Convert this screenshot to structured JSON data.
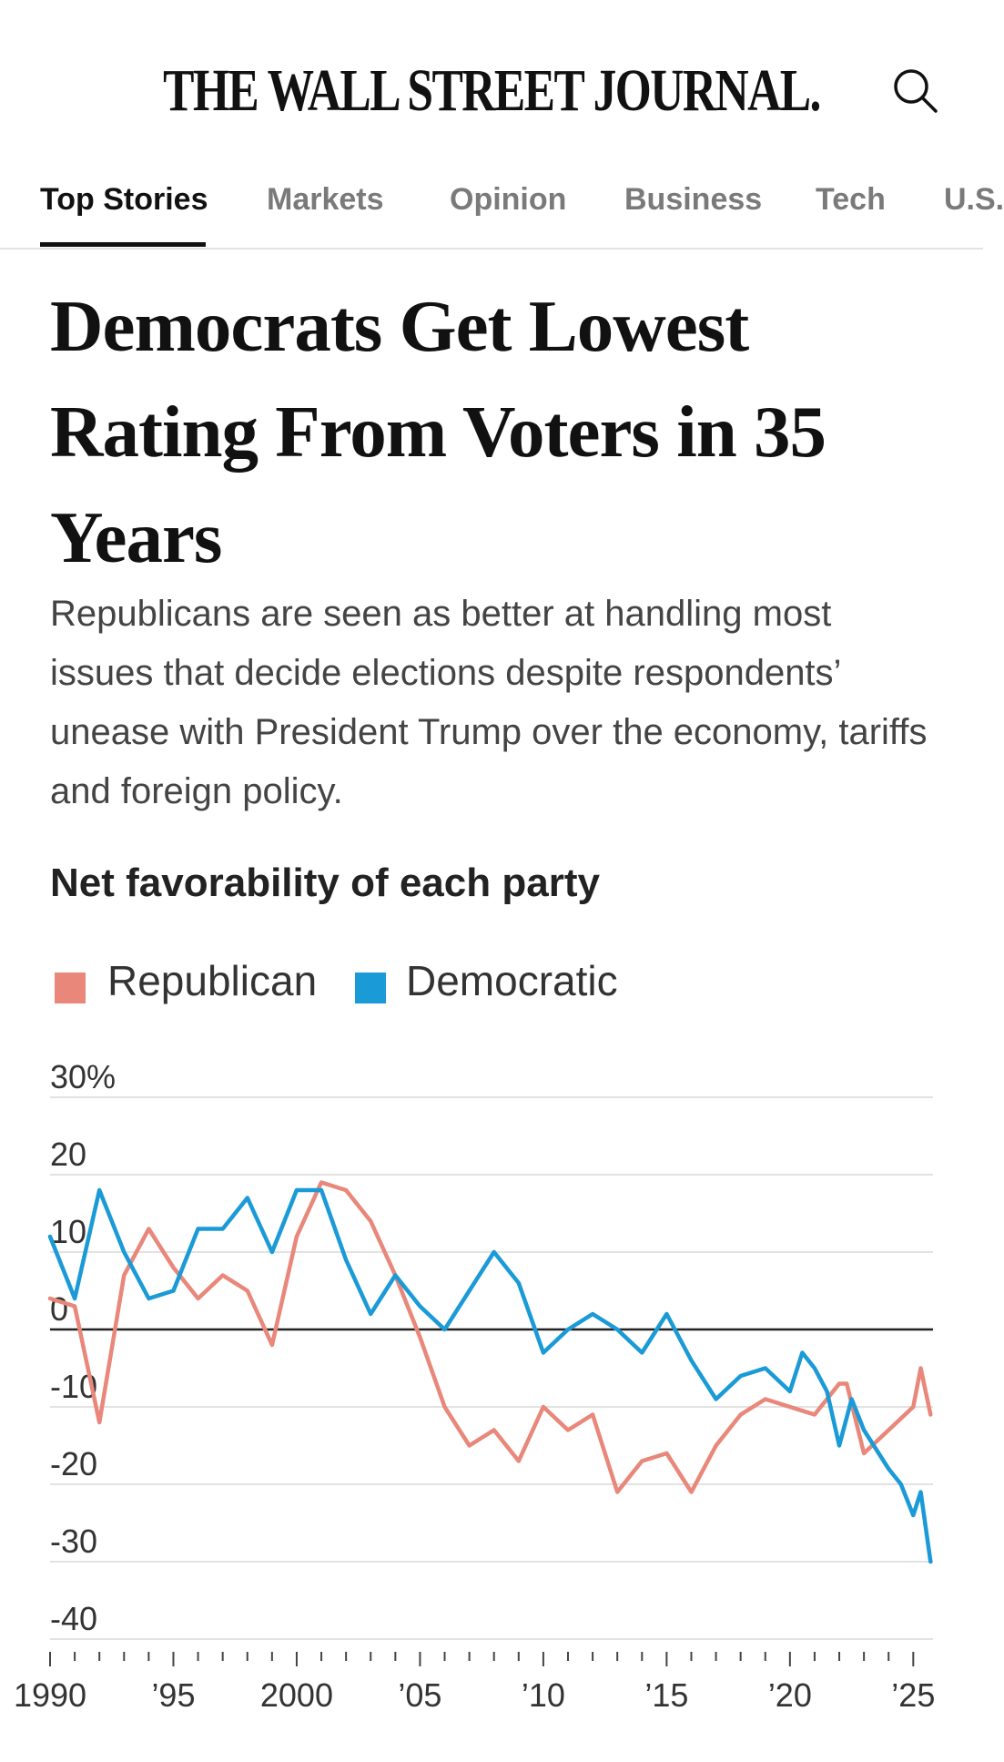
{
  "masthead": {
    "title": "THE WALL STREET JOURNAL."
  },
  "nav": {
    "tabs": [
      {
        "label": "Top Stories",
        "active": true
      },
      {
        "label": "Markets",
        "active": false
      },
      {
        "label": "Opinion",
        "active": false
      },
      {
        "label": "Business",
        "active": false
      },
      {
        "label": "Tech",
        "active": false
      },
      {
        "label": "U.S.",
        "active": false
      }
    ]
  },
  "article": {
    "headline": "Democrats Get Lowest Rating From Voters in 35 Years",
    "dek": "Republicans are seen as better at handling most issues that decide elections despite respondents’ unease with President Trump over the economy, tariffs and foreign policy."
  },
  "colors": {
    "republican": "#e8877a",
    "democratic": "#1a9ad6",
    "zero_line": "#222222",
    "grid": "#e2e2e2"
  },
  "chart_data": {
    "type": "line",
    "title": "Net favorability of each party",
    "legend_position": "top-left",
    "y_unit": "%",
    "ylim": [
      -40,
      30
    ],
    "y_ticks": [
      30,
      20,
      10,
      0,
      -10,
      -20,
      -30,
      -40
    ],
    "y_tick_labels": [
      "30%",
      "20",
      "10",
      "0",
      "-10",
      "-20",
      "-30",
      "-40"
    ],
    "xlim": [
      1990,
      2025.8
    ],
    "x_ticks": [
      1990,
      1995,
      2000,
      2005,
      2010,
      2015,
      2020,
      2025
    ],
    "x_tick_labels": [
      "1990",
      "’95",
      "2000",
      "’05",
      "’10",
      "’15",
      "’20",
      "’25"
    ],
    "grid": true,
    "series": [
      {
        "name": "Republican",
        "color": "#e8877a",
        "x": [
          1990.0,
          1991.0,
          1992.0,
          1993.0,
          1994.0,
          1995.0,
          1996.0,
          1997.0,
          1998.0,
          1999.0,
          2000.0,
          2001.0,
          2002.0,
          2003.0,
          2004.0,
          2005.0,
          2006.0,
          2007.0,
          2008.0,
          2009.0,
          2010.0,
          2011.0,
          2012.0,
          2013.0,
          2014.0,
          2015.0,
          2016.0,
          2017.0,
          2018.0,
          2019.0,
          2020.0,
          2021.0,
          2022.0,
          2022.3,
          2023.0,
          2024.0,
          2025.0,
          2025.3,
          2025.7
        ],
        "values": [
          4,
          3,
          -12,
          7,
          13,
          8,
          4,
          7,
          5,
          -2,
          12,
          19,
          18,
          14,
          7,
          -1,
          -10,
          -15,
          -13,
          -17,
          -10,
          -13,
          -11,
          -21,
          -17,
          -16,
          -21,
          -15,
          -11,
          -9,
          -10,
          -11,
          -7,
          -7,
          -16,
          -13,
          -10,
          -5,
          -11
        ]
      },
      {
        "name": "Democratic",
        "color": "#1a9ad6",
        "x": [
          1990.0,
          1991.0,
          1992.0,
          1993.0,
          1994.0,
          1995.0,
          1996.0,
          1997.0,
          1998.0,
          1999.0,
          2000.0,
          2001.0,
          2002.0,
          2003.0,
          2004.0,
          2005.0,
          2006.0,
          2007.0,
          2008.0,
          2009.0,
          2010.0,
          2011.0,
          2012.0,
          2013.0,
          2014.0,
          2015.0,
          2016.0,
          2017.0,
          2018.0,
          2019.0,
          2020.0,
          2020.5,
          2021.0,
          2021.5,
          2022.0,
          2022.5,
          2023.0,
          2024.0,
          2024.5,
          2025.0,
          2025.3,
          2025.7
        ],
        "values": [
          12,
          4,
          18,
          10,
          4,
          5,
          13,
          13,
          17,
          10,
          18,
          18,
          9,
          2,
          7,
          3,
          0,
          5,
          10,
          6,
          -3,
          0,
          2,
          0,
          -3,
          2,
          -4,
          -9,
          -6,
          -5,
          -8,
          -3,
          -5,
          -8,
          -15,
          -9,
          -13,
          -18,
          -20,
          -24,
          -21,
          -30
        ]
      }
    ]
  }
}
